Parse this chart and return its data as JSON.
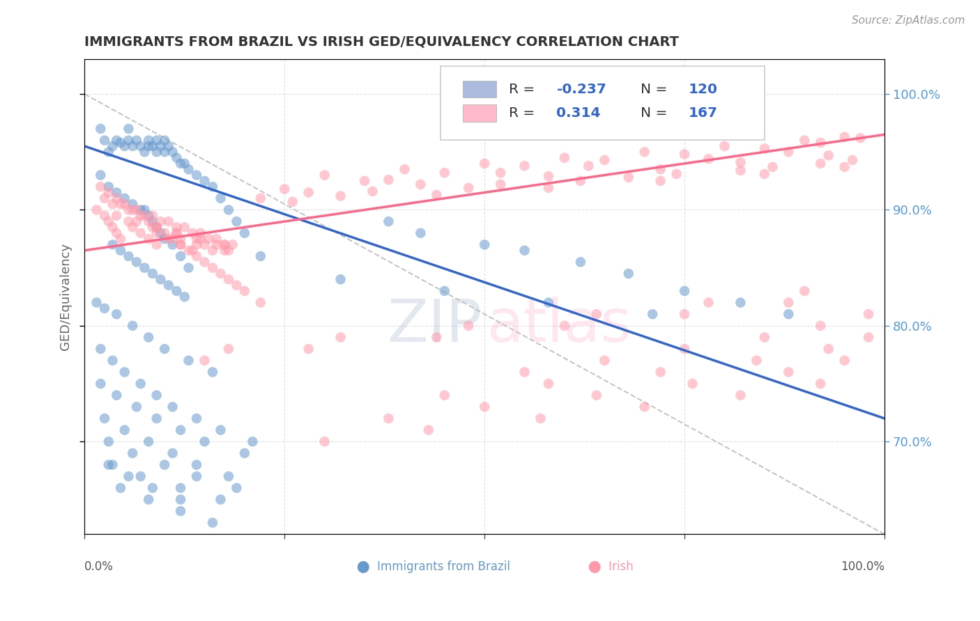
{
  "title": "IMMIGRANTS FROM BRAZIL VS IRISH GED/EQUIVALENCY CORRELATION CHART",
  "source_text": "Source: ZipAtlas.com",
  "ylabel": "GED/Equivalency",
  "xlim": [
    0.0,
    1.0
  ],
  "ylim": [
    0.62,
    1.03
  ],
  "blue_color": "#6699CC",
  "pink_color": "#FF99AA",
  "blue_line_color": "#3366CC",
  "pink_line_color": "#FF6688",
  "dashed_line_color": "#BBBBBB",
  "title_color": "#333333",
  "background_color": "#FFFFFF",
  "grid_color": "#DDDDDD",
  "legend_box_color_blue": "#AABBDD",
  "legend_box_color_pink": "#FFBBCC",
  "blue_trend_y_start": 0.955,
  "blue_trend_y_end": 0.72,
  "pink_trend_y_start": 0.865,
  "pink_trend_y_end": 0.965,
  "blue_scatter_x": [
    0.02,
    0.025,
    0.03,
    0.035,
    0.04,
    0.045,
    0.05,
    0.055,
    0.055,
    0.06,
    0.065,
    0.07,
    0.075,
    0.08,
    0.08,
    0.085,
    0.09,
    0.09,
    0.095,
    0.1,
    0.1,
    0.105,
    0.11,
    0.115,
    0.12,
    0.125,
    0.13,
    0.14,
    0.15,
    0.16,
    0.17,
    0.18,
    0.19,
    0.2,
    0.22,
    0.02,
    0.03,
    0.04,
    0.05,
    0.06,
    0.07,
    0.075,
    0.08,
    0.085,
    0.09,
    0.095,
    0.1,
    0.11,
    0.12,
    0.13,
    0.035,
    0.045,
    0.055,
    0.065,
    0.075,
    0.085,
    0.095,
    0.105,
    0.115,
    0.125,
    0.015,
    0.025,
    0.04,
    0.06,
    0.08,
    0.1,
    0.13,
    0.16,
    0.02,
    0.035,
    0.05,
    0.07,
    0.09,
    0.11,
    0.14,
    0.17,
    0.21,
    0.02,
    0.04,
    0.065,
    0.09,
    0.12,
    0.15,
    0.2,
    0.025,
    0.05,
    0.08,
    0.11,
    0.14,
    0.18,
    0.03,
    0.06,
    0.1,
    0.14,
    0.19,
    0.035,
    0.07,
    0.12,
    0.17,
    0.03,
    0.055,
    0.085,
    0.12,
    0.045,
    0.08,
    0.12,
    0.16,
    0.38,
    0.42,
    0.5,
    0.55,
    0.62,
    0.68,
    0.75,
    0.82,
    0.88,
    0.32,
    0.45,
    0.58,
    0.71
  ],
  "blue_scatter_y": [
    0.97,
    0.96,
    0.95,
    0.955,
    0.96,
    0.958,
    0.955,
    0.96,
    0.97,
    0.955,
    0.96,
    0.955,
    0.95,
    0.955,
    0.96,
    0.955,
    0.95,
    0.96,
    0.955,
    0.95,
    0.96,
    0.955,
    0.95,
    0.945,
    0.94,
    0.94,
    0.935,
    0.93,
    0.925,
    0.92,
    0.91,
    0.9,
    0.89,
    0.88,
    0.86,
    0.93,
    0.92,
    0.915,
    0.91,
    0.905,
    0.9,
    0.9,
    0.895,
    0.89,
    0.885,
    0.88,
    0.875,
    0.87,
    0.86,
    0.85,
    0.87,
    0.865,
    0.86,
    0.855,
    0.85,
    0.845,
    0.84,
    0.835,
    0.83,
    0.825,
    0.82,
    0.815,
    0.81,
    0.8,
    0.79,
    0.78,
    0.77,
    0.76,
    0.78,
    0.77,
    0.76,
    0.75,
    0.74,
    0.73,
    0.72,
    0.71,
    0.7,
    0.75,
    0.74,
    0.73,
    0.72,
    0.71,
    0.7,
    0.69,
    0.72,
    0.71,
    0.7,
    0.69,
    0.68,
    0.67,
    0.7,
    0.69,
    0.68,
    0.67,
    0.66,
    0.68,
    0.67,
    0.66,
    0.65,
    0.68,
    0.67,
    0.66,
    0.65,
    0.66,
    0.65,
    0.64,
    0.63,
    0.89,
    0.88,
    0.87,
    0.865,
    0.855,
    0.845,
    0.83,
    0.82,
    0.81,
    0.84,
    0.83,
    0.82,
    0.81
  ],
  "pink_scatter_x": [
    0.02,
    0.03,
    0.04,
    0.05,
    0.06,
    0.07,
    0.08,
    0.09,
    0.1,
    0.11,
    0.12,
    0.13,
    0.14,
    0.15,
    0.16,
    0.17,
    0.18,
    0.19,
    0.2,
    0.22,
    0.025,
    0.045,
    0.065,
    0.085,
    0.105,
    0.125,
    0.145,
    0.165,
    0.185,
    0.035,
    0.055,
    0.075,
    0.095,
    0.115,
    0.135,
    0.155,
    0.175,
    0.015,
    0.04,
    0.065,
    0.09,
    0.115,
    0.14,
    0.165,
    0.025,
    0.055,
    0.085,
    0.115,
    0.145,
    0.175,
    0.03,
    0.06,
    0.09,
    0.12,
    0.15,
    0.18,
    0.035,
    0.07,
    0.105,
    0.14,
    0.175,
    0.04,
    0.08,
    0.12,
    0.16,
    0.045,
    0.09,
    0.135,
    0.3,
    0.4,
    0.5,
    0.6,
    0.7,
    0.8,
    0.9,
    0.95,
    0.35,
    0.45,
    0.55,
    0.65,
    0.75,
    0.85,
    0.92,
    0.97,
    0.25,
    0.38,
    0.52,
    0.63,
    0.78,
    0.88,
    0.28,
    0.42,
    0.58,
    0.72,
    0.82,
    0.93,
    0.32,
    0.48,
    0.62,
    0.74,
    0.86,
    0.96,
    0.22,
    0.36,
    0.52,
    0.68,
    0.82,
    0.92,
    0.26,
    0.44,
    0.58,
    0.72,
    0.85,
    0.95,
    0.18,
    0.32,
    0.48,
    0.64,
    0.78,
    0.9,
    0.15,
    0.28,
    0.44,
    0.6,
    0.75,
    0.88,
    0.55,
    0.65,
    0.75,
    0.85,
    0.92,
    0.98,
    0.45,
    0.58,
    0.72,
    0.84,
    0.93,
    0.98,
    0.38,
    0.5,
    0.64,
    0.76,
    0.88,
    0.95,
    0.3,
    0.43,
    0.57,
    0.7,
    0.82,
    0.92
  ],
  "pink_scatter_y": [
    0.92,
    0.915,
    0.91,
    0.905,
    0.9,
    0.895,
    0.89,
    0.885,
    0.88,
    0.875,
    0.87,
    0.865,
    0.86,
    0.855,
    0.85,
    0.845,
    0.84,
    0.835,
    0.83,
    0.82,
    0.91,
    0.905,
    0.9,
    0.895,
    0.89,
    0.885,
    0.88,
    0.875,
    0.87,
    0.905,
    0.9,
    0.895,
    0.89,
    0.885,
    0.88,
    0.875,
    0.87,
    0.9,
    0.895,
    0.89,
    0.885,
    0.88,
    0.875,
    0.87,
    0.895,
    0.89,
    0.885,
    0.88,
    0.875,
    0.87,
    0.89,
    0.885,
    0.88,
    0.875,
    0.87,
    0.865,
    0.885,
    0.88,
    0.875,
    0.87,
    0.865,
    0.88,
    0.875,
    0.87,
    0.865,
    0.875,
    0.87,
    0.865,
    0.93,
    0.935,
    0.94,
    0.945,
    0.95,
    0.955,
    0.96,
    0.963,
    0.925,
    0.932,
    0.938,
    0.943,
    0.948,
    0.953,
    0.958,
    0.962,
    0.918,
    0.926,
    0.932,
    0.938,
    0.944,
    0.95,
    0.915,
    0.922,
    0.929,
    0.935,
    0.941,
    0.947,
    0.912,
    0.919,
    0.925,
    0.931,
    0.937,
    0.943,
    0.91,
    0.916,
    0.922,
    0.928,
    0.934,
    0.94,
    0.907,
    0.913,
    0.919,
    0.925,
    0.931,
    0.937,
    0.78,
    0.79,
    0.8,
    0.81,
    0.82,
    0.83,
    0.77,
    0.78,
    0.79,
    0.8,
    0.81,
    0.82,
    0.76,
    0.77,
    0.78,
    0.79,
    0.8,
    0.81,
    0.74,
    0.75,
    0.76,
    0.77,
    0.78,
    0.79,
    0.72,
    0.73,
    0.74,
    0.75,
    0.76,
    0.77,
    0.7,
    0.71,
    0.72,
    0.73,
    0.74,
    0.75
  ]
}
